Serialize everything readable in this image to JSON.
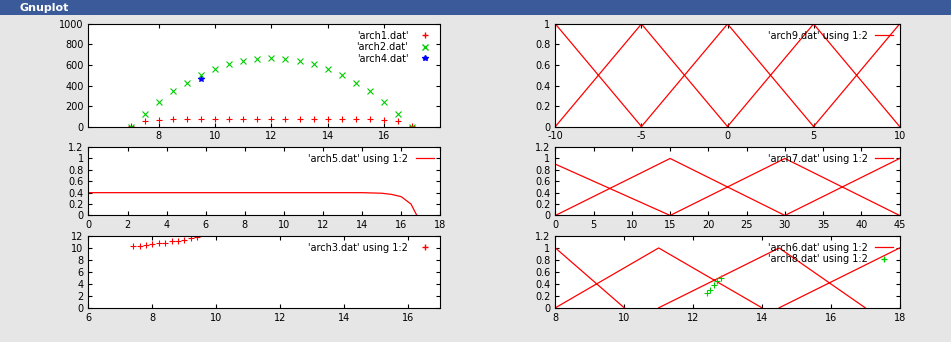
{
  "window_title": "Gnuplot",
  "chart_data": [
    {
      "type": "scatter",
      "xlim": [
        5.5,
        18
      ],
      "xticks": [
        8,
        10,
        12,
        14,
        16
      ],
      "ylim": [
        0,
        1000
      ],
      "yticks": [
        0,
        200,
        400,
        600,
        800,
        1000
      ],
      "legend": "upper right",
      "series": [
        {
          "name": "'arch1.dat'",
          "color": "#ff0000",
          "type": "scatter",
          "marker": "plus",
          "x": [
            7,
            7.5,
            8,
            8.5,
            9,
            9.5,
            10,
            10.5,
            11,
            11.5,
            12,
            12.5,
            13,
            13.5,
            14,
            14.5,
            15,
            15.5,
            16,
            16.5,
            17
          ],
          "values": [
            10,
            55,
            65,
            70,
            72,
            74,
            75,
            76,
            76,
            77,
            77,
            77,
            76,
            76,
            75,
            74,
            72,
            70,
            65,
            55,
            10
          ]
        },
        {
          "name": "'arch2.dat'",
          "color": "#00cc00",
          "type": "scatter",
          "marker": "cross",
          "x": [
            7,
            7.5,
            8,
            8.5,
            9,
            9.5,
            10,
            10.5,
            11,
            11.5,
            12,
            12.5,
            13,
            13.5,
            14,
            14.5,
            15,
            15.5,
            16,
            16.5,
            17
          ],
          "values": [
            0,
            127,
            241,
            342,
            429,
            502,
            563,
            610,
            643,
            663,
            670,
            663,
            643,
            610,
            563,
            502,
            429,
            342,
            241,
            127,
            0
          ]
        },
        {
          "name": "'arch4.dat'",
          "color": "#0000ff",
          "type": "scatter",
          "marker": "star",
          "x": [
            9.5
          ],
          "values": [
            460
          ]
        }
      ]
    },
    {
      "type": "line",
      "xlim": [
        -10,
        10
      ],
      "xticks": [
        -10,
        -5,
        0,
        5,
        10
      ],
      "ylim": [
        0,
        1
      ],
      "yticks": [
        0,
        0.2,
        0.4,
        0.6,
        0.8,
        1
      ],
      "legend": "upper right",
      "series": [
        {
          "name": "'arch9.dat' using 1:2",
          "color": "#ff0000",
          "type": "line",
          "line_style": "solid",
          "x": [
            -10,
            -5,
            null,
            -10,
            -5,
            0,
            null,
            -5,
            0,
            5,
            null,
            0,
            5,
            10,
            null,
            5,
            10
          ],
          "values": [
            1,
            0,
            null,
            0,
            1,
            0,
            null,
            0,
            1,
            0,
            null,
            0,
            1,
            0,
            null,
            0,
            1
          ]
        }
      ]
    },
    {
      "type": "line",
      "xlim": [
        0,
        18
      ],
      "xticks": [
        0,
        2,
        4,
        6,
        8,
        10,
        12,
        14,
        16,
        18
      ],
      "ylim": [
        0,
        1.2
      ],
      "yticks": [
        0,
        0.2,
        0.4,
        0.6,
        0.8,
        1,
        1.2
      ],
      "legend": "upper right",
      "series": [
        {
          "name": "'arch5.dat' using 1:2",
          "color": "#ff0000",
          "type": "line",
          "line_style": "solid",
          "x": [
            0,
            2,
            4,
            6,
            8,
            10,
            12,
            14,
            15,
            15.5,
            16,
            16.5,
            16.8
          ],
          "values": [
            0.4,
            0.4,
            0.4,
            0.4,
            0.4,
            0.4,
            0.4,
            0.4,
            0.39,
            0.37,
            0.33,
            0.2,
            0
          ]
        }
      ]
    },
    {
      "type": "line",
      "xlim": [
        0,
        45
      ],
      "xticks": [
        0,
        5,
        10,
        15,
        20,
        25,
        30,
        35,
        40,
        45
      ],
      "ylim": [
        0,
        1.2
      ],
      "yticks": [
        0,
        0.2,
        0.4,
        0.6,
        0.8,
        1,
        1.2
      ],
      "legend": "upper right",
      "series": [
        {
          "name": "'arch7.dat' using 1:2",
          "color": "#ff0000",
          "type": "line",
          "line_style": "solid",
          "x": [
            0,
            15,
            null,
            0,
            15,
            30,
            null,
            15,
            30,
            45,
            null,
            30,
            45
          ],
          "values": [
            0.9,
            0,
            null,
            0,
            1,
            0,
            null,
            0,
            1,
            0,
            null,
            0,
            1
          ]
        }
      ]
    },
    {
      "type": "scatter",
      "xlim": [
        6,
        17
      ],
      "xticks": [
        6,
        8,
        10,
        12,
        14,
        16
      ],
      "ylim": [
        0,
        12
      ],
      "yticks": [
        0,
        2,
        4,
        6,
        8,
        10,
        12
      ],
      "legend": "upper right",
      "series": [
        {
          "name": "'arch3.dat' using 1:2",
          "color": "#ff0000",
          "type": "scatter",
          "marker": "plus",
          "x": [
            7.4,
            7.6,
            7.8,
            8.0,
            8.2,
            8.4,
            8.6,
            8.8,
            9.0,
            9.2,
            9.4
          ],
          "values": [
            10.3,
            10.4,
            10.5,
            10.6,
            10.8,
            10.9,
            11.1,
            11.2,
            11.4,
            11.6,
            11.8
          ]
        }
      ]
    },
    {
      "type": "line",
      "xlim": [
        8,
        18
      ],
      "xticks": [
        8,
        10,
        12,
        14,
        16,
        18
      ],
      "ylim": [
        0,
        1.2
      ],
      "yticks": [
        0,
        0.2,
        0.4,
        0.6,
        0.8,
        1,
        1.2
      ],
      "legend": "upper right",
      "series": [
        {
          "name": "'arch6.dat' using 1:2",
          "color": "#ff0000",
          "type": "line",
          "line_style": "solid",
          "x": [
            8,
            10,
            null,
            8,
            11,
            14,
            null,
            11,
            14.5,
            17,
            null,
            14.5,
            18
          ],
          "values": [
            1,
            0,
            null,
            0,
            1,
            0,
            null,
            0,
            1,
            0,
            null,
            0,
            1
          ]
        },
        {
          "name": "'arch8.dat' using 1:2",
          "color": "#00cc00",
          "type": "scatter",
          "marker": "plus",
          "x": [
            12.4,
            12.5,
            12.6,
            12.7,
            12.8
          ],
          "values": [
            0.25,
            0.3,
            0.38,
            0.45,
            0.5
          ]
        }
      ]
    }
  ]
}
